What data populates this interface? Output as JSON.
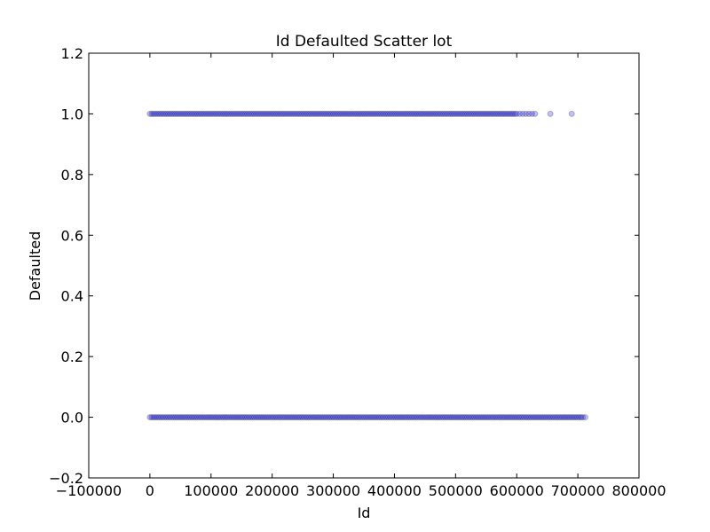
{
  "chart_data": {
    "type": "scatter",
    "title": "Id Defaulted Scatter lot",
    "xlabel": "Id",
    "ylabel": "Defaulted",
    "xlim": [
      -100000,
      800000
    ],
    "ylim": [
      -0.2,
      1.2
    ],
    "xticks": [
      -100000,
      0,
      100000,
      200000,
      300000,
      400000,
      500000,
      600000,
      700000,
      800000
    ],
    "xtick_labels": [
      "−100000",
      "0",
      "100000",
      "200000",
      "300000",
      "400000",
      "500000",
      "600000",
      "700000",
      "800000"
    ],
    "yticks": [
      -0.2,
      0.0,
      0.2,
      0.4,
      0.6,
      0.8,
      1.0,
      1.2
    ],
    "ytick_labels": [
      "−0.2",
      "0.0",
      "0.2",
      "0.4",
      "0.6",
      "0.8",
      "1.0",
      "1.2"
    ],
    "grid": false,
    "legend": "none",
    "marker_color": "#0000ff",
    "marker_edge_color": "#000000",
    "marker_alpha": 0.25,
    "series": [
      {
        "y": 1,
        "x_range": [
          0,
          600000
        ],
        "sparse_x": [
          605000,
          610000,
          615000,
          620000,
          625000,
          630000,
          655000,
          690000
        ]
      },
      {
        "y": 0,
        "x_range": [
          0,
          710000
        ],
        "sparse_x": [
          712000
        ]
      }
    ]
  }
}
